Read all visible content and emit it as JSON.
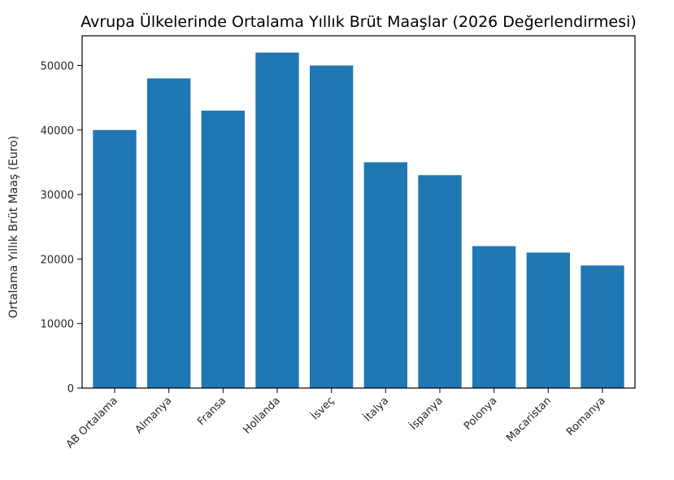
{
  "chart_data": {
    "type": "bar",
    "title": "Avrupa Ülkelerinde Ortalama Yıllık Brüt Maaşlar (2026 Değerlendirmesi)",
    "xlabel": "",
    "ylabel": "Ortalama Yıllık Brüt Maaş (Euro)",
    "categories": [
      "AB Ortalama",
      "Almanya",
      "Fransa",
      "Hollanda",
      "İsveç",
      "İtalya",
      "İspanya",
      "Polonya",
      "Macaristan",
      "Romanya"
    ],
    "values": [
      40000,
      48000,
      43000,
      52000,
      50000,
      35000,
      33000,
      22000,
      21000,
      19000
    ],
    "ylim": [
      0,
      54600
    ],
    "yticks": [
      0,
      10000,
      20000,
      30000,
      40000,
      50000
    ],
    "ytick_labels": [
      "0",
      "10000",
      "20000",
      "30000",
      "40000",
      "50000"
    ],
    "bar_color": "#1f77b4",
    "grid": false,
    "legend": "none"
  }
}
